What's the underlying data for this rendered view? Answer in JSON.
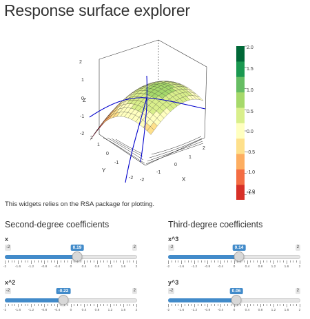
{
  "page": {
    "title": "Response surface explorer",
    "note": "This widgets relies on the RSA package for plotting."
  },
  "plot": {
    "z_axis_label": "Z",
    "x_axis_label": "X",
    "y_axis_label": "Y",
    "z_ticks": [
      "2",
      "1",
      "0",
      "-1",
      "-2"
    ],
    "x_ticks": [
      "-2",
      "-1",
      "0",
      "1",
      "2"
    ],
    "y_ticks": [
      "2",
      "1",
      "0",
      "-1",
      "-2"
    ],
    "colorbar_labels": [
      "2.0",
      "1.5",
      "1.0",
      "0.5",
      "0.0",
      "-0.5",
      "-1.0",
      "-1.5",
      "-2.0"
    ],
    "colorbar_colors": [
      "#006837",
      "#1a9850",
      "#66bd63",
      "#a6d96a",
      "#d9ef8b",
      "#ffffbf",
      "#fee08b",
      "#fdae61",
      "#f46d43",
      "#d73027",
      "#a50026"
    ],
    "surface_line_color": "#0000cc"
  },
  "sections": {
    "second_degree": "Second-degree coefficients",
    "third_degree": "Third-degree coefficients"
  },
  "sliders": [
    {
      "id": "x",
      "label": "x",
      "value": 0.19,
      "value_text": "0.19",
      "min_text": "-2",
      "max_text": "2"
    },
    {
      "id": "x2",
      "label": "x^2",
      "value": -0.22,
      "value_text": "-0.22",
      "min_text": "-2",
      "max_text": "2"
    },
    {
      "id": "x3",
      "label": "x^3",
      "value": 0.14,
      "value_text": "0.14",
      "min_text": "-2",
      "max_text": "2"
    },
    {
      "id": "y3",
      "label": "y^3",
      "value": 0.06,
      "value_text": "0.06",
      "min_text": "-2",
      "max_text": "2"
    }
  ],
  "slider_ticks": [
    "-2",
    "-1.6",
    "-1.2",
    "-0.8",
    "-0.4",
    "0",
    "0.4",
    "0.8",
    "1.2",
    "1.6",
    "2"
  ],
  "slider_range": [
    -2,
    2
  ],
  "colors": {
    "accent": "#428bca"
  }
}
